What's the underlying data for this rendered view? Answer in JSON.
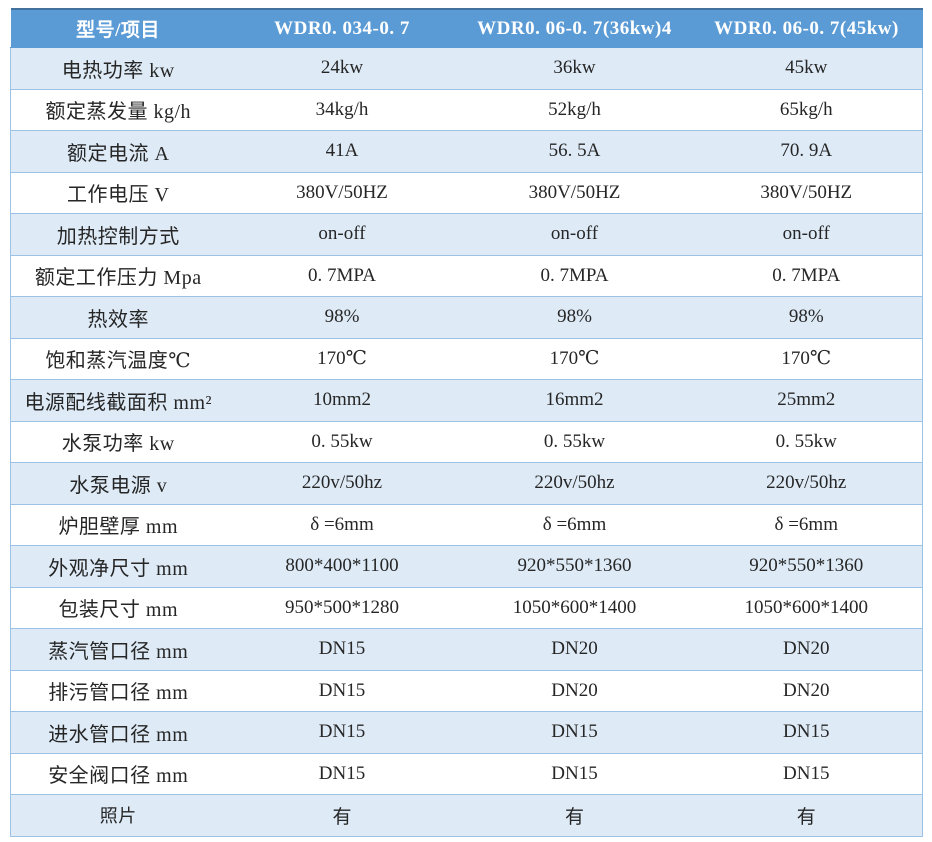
{
  "colors": {
    "header_bg": "#5b9bd5",
    "header_top_border": "#41719c",
    "band_row_bg": "#deebf7",
    "plain_row_bg": "#ffffff",
    "row_border": "#9cc2e5",
    "header_text": "#ffffff",
    "body_text": "#262626"
  },
  "table": {
    "columns": [
      "型号/项目",
      "WDR0. 034-0. 7",
      "WDR0. 06-0. 7(36kw)4",
      "WDR0. 06-0. 7(45kw)"
    ],
    "rows": [
      {
        "label": "电热功率 kw",
        "values": [
          "24kw",
          "36kw",
          "45kw"
        ]
      },
      {
        "label": "额定蒸发量 kg/h",
        "values": [
          "34kg/h",
          "52kg/h",
          "65kg/h"
        ]
      },
      {
        "label": "额定电流 A",
        "values": [
          "41A",
          "56. 5A",
          "70. 9A"
        ]
      },
      {
        "label": "工作电压 V",
        "values": [
          "380V/50HZ",
          "380V/50HZ",
          "380V/50HZ"
        ]
      },
      {
        "label": "加热控制方式",
        "values": [
          "on-off",
          "on-off",
          "on-off"
        ]
      },
      {
        "label": "额定工作压力 Mpa",
        "values": [
          "0. 7MPA",
          "0. 7MPA",
          "0. 7MPA"
        ]
      },
      {
        "label": "热效率",
        "values": [
          "98%",
          "98%",
          "98%"
        ]
      },
      {
        "label": "饱和蒸汽温度℃",
        "values": [
          "170℃",
          "170℃",
          "170℃"
        ]
      },
      {
        "label": "电源配线截面积 mm²",
        "values": [
          "10mm2",
          "16mm2",
          "25mm2"
        ]
      },
      {
        "label": "水泵功率 kw",
        "values": [
          "0. 55kw",
          "0. 55kw",
          "0. 55kw"
        ]
      },
      {
        "label": "水泵电源 v",
        "values": [
          "220v/50hz",
          "220v/50hz",
          "220v/50hz"
        ]
      },
      {
        "label": "炉胆壁厚 mm",
        "values": [
          "δ =6mm",
          "δ =6mm",
          "δ =6mm"
        ]
      },
      {
        "label": "外观净尺寸 mm",
        "values": [
          "800*400*1100",
          "920*550*1360",
          "920*550*1360"
        ]
      },
      {
        "label": "包装尺寸 mm",
        "values": [
          "950*500*1280",
          "1050*600*1400",
          "1050*600*1400"
        ]
      },
      {
        "label": "蒸汽管口径 mm",
        "values": [
          "DN15",
          "DN20",
          "DN20"
        ]
      },
      {
        "label": "排污管口径 mm",
        "values": [
          "DN15",
          "DN20",
          "DN20"
        ]
      },
      {
        "label": "进水管口径 mm",
        "values": [
          "DN15",
          "DN15",
          "DN15"
        ]
      },
      {
        "label": "安全阀口径 mm",
        "values": [
          "DN15",
          "DN15",
          "DN15"
        ]
      },
      {
        "label": "照片",
        "values": [
          "有",
          "有",
          "有"
        ]
      }
    ]
  }
}
